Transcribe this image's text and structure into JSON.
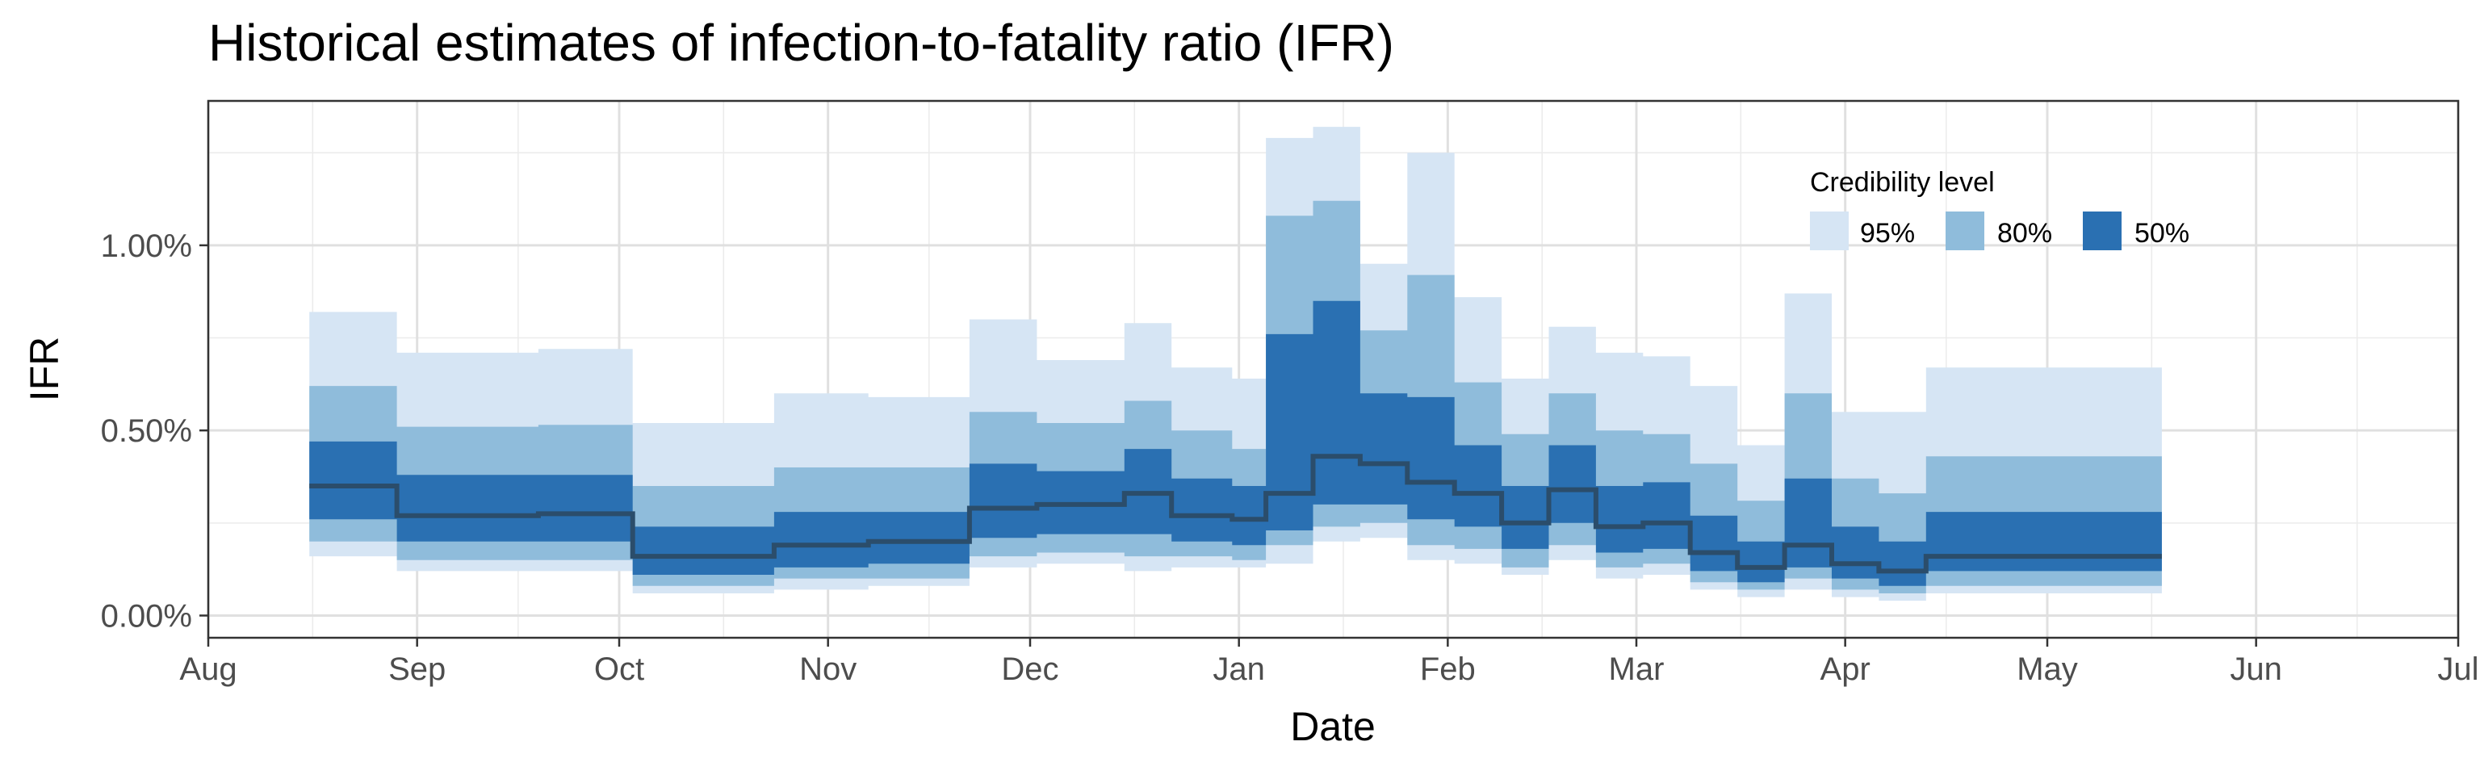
{
  "chart_data": {
    "type": "area",
    "title": "Historical estimates of infection-to-fatality ratio (IFR)",
    "xlabel": "Date",
    "ylabel": "IFR",
    "x_ticks": [
      "Aug",
      "Sep",
      "Oct",
      "Nov",
      "Dec",
      "Jan",
      "Feb",
      "Mar",
      "Apr",
      "May",
      "Jun",
      "Jul"
    ],
    "x_tick_dates": [
      "2020-08-01",
      "2020-09-01",
      "2020-10-01",
      "2020-11-01",
      "2020-12-01",
      "2021-01-01",
      "2021-02-01",
      "2021-03-01",
      "2021-04-01",
      "2021-05-01",
      "2021-06-01",
      "2021-07-01"
    ],
    "xlim": [
      "2020-08-01",
      "2021-07-01"
    ],
    "y_ticks": [
      "0.00%",
      "0.50%",
      "1.00%"
    ],
    "y_tick_values": [
      0.0,
      0.5,
      1.0
    ],
    "ylim": [
      -0.06,
      1.39
    ],
    "grid": true,
    "legend": {
      "title": "Credibility level",
      "position": "top-right (inside)",
      "entries": [
        {
          "label": "95%",
          "color": "#d6e5f4"
        },
        {
          "label": "80%",
          "color": "#8fbcdb"
        },
        {
          "label": "50%",
          "color": "#2a70b2"
        }
      ]
    },
    "median_color": "#2b4d6b",
    "series": [
      {
        "date": "2020-08-16",
        "median": 0.35,
        "lo50": 0.26,
        "hi50": 0.47,
        "lo80": 0.2,
        "hi80": 0.62,
        "lo95": 0.16,
        "hi95": 0.82
      },
      {
        "date": "2020-08-29",
        "median": 0.27,
        "lo50": 0.2,
        "hi50": 0.38,
        "lo80": 0.15,
        "hi80": 0.51,
        "lo95": 0.12,
        "hi95": 0.71
      },
      {
        "date": "2020-09-19",
        "median": 0.275,
        "lo50": 0.2,
        "hi50": 0.38,
        "lo80": 0.15,
        "hi80": 0.515,
        "lo95": 0.12,
        "hi95": 0.72
      },
      {
        "date": "2020-10-03",
        "median": 0.16,
        "lo50": 0.11,
        "hi50": 0.24,
        "lo80": 0.08,
        "hi80": 0.35,
        "lo95": 0.06,
        "hi95": 0.52
      },
      {
        "date": "2020-10-24",
        "median": 0.19,
        "lo50": 0.13,
        "hi50": 0.28,
        "lo80": 0.1,
        "hi80": 0.4,
        "lo95": 0.07,
        "hi95": 0.6
      },
      {
        "date": "2020-11-07",
        "median": 0.2,
        "lo50": 0.14,
        "hi50": 0.28,
        "lo80": 0.1,
        "hi80": 0.4,
        "lo95": 0.08,
        "hi95": 0.59
      },
      {
        "date": "2020-11-22",
        "median": 0.29,
        "lo50": 0.21,
        "hi50": 0.41,
        "lo80": 0.16,
        "hi80": 0.55,
        "lo95": 0.13,
        "hi95": 0.8
      },
      {
        "date": "2020-12-02",
        "median": 0.3,
        "lo50": 0.22,
        "hi50": 0.39,
        "lo80": 0.17,
        "hi80": 0.52,
        "lo95": 0.14,
        "hi95": 0.69
      },
      {
        "date": "2020-12-15",
        "median": 0.33,
        "lo50": 0.22,
        "hi50": 0.45,
        "lo80": 0.16,
        "hi80": 0.58,
        "lo95": 0.12,
        "hi95": 0.79
      },
      {
        "date": "2020-12-22",
        "median": 0.27,
        "lo50": 0.2,
        "hi50": 0.37,
        "lo80": 0.16,
        "hi80": 0.5,
        "lo95": 0.13,
        "hi95": 0.67
      },
      {
        "date": "2020-12-31",
        "median": 0.26,
        "lo50": 0.19,
        "hi50": 0.35,
        "lo80": 0.15,
        "hi80": 0.45,
        "lo95": 0.13,
        "hi95": 0.64
      },
      {
        "date": "2021-01-05",
        "median": 0.33,
        "lo50": 0.23,
        "hi50": 0.76,
        "lo80": 0.19,
        "hi80": 1.08,
        "lo95": 0.14,
        "hi95": 1.29
      },
      {
        "date": "2021-01-12",
        "median": 0.43,
        "lo50": 0.3,
        "hi50": 0.85,
        "lo80": 0.24,
        "hi80": 1.12,
        "lo95": 0.2,
        "hi95": 1.32
      },
      {
        "date": "2021-01-19",
        "median": 0.41,
        "lo50": 0.3,
        "hi50": 0.6,
        "lo80": 0.25,
        "hi80": 0.77,
        "lo95": 0.21,
        "hi95": 0.95
      },
      {
        "date": "2021-01-26",
        "median": 0.36,
        "lo50": 0.26,
        "hi50": 0.59,
        "lo80": 0.19,
        "hi80": 0.92,
        "lo95": 0.15,
        "hi95": 1.25
      },
      {
        "date": "2021-02-02",
        "median": 0.33,
        "lo50": 0.24,
        "hi50": 0.46,
        "lo80": 0.18,
        "hi80": 0.63,
        "lo95": 0.14,
        "hi95": 0.86
      },
      {
        "date": "2021-02-09",
        "median": 0.25,
        "lo50": 0.18,
        "hi50": 0.35,
        "lo80": 0.13,
        "hi80": 0.49,
        "lo95": 0.11,
        "hi95": 0.64
      },
      {
        "date": "2021-02-16",
        "median": 0.34,
        "lo50": 0.25,
        "hi50": 0.46,
        "lo80": 0.19,
        "hi80": 0.6,
        "lo95": 0.15,
        "hi95": 0.78
      },
      {
        "date": "2021-02-23",
        "median": 0.24,
        "lo50": 0.17,
        "hi50": 0.35,
        "lo80": 0.13,
        "hi80": 0.5,
        "lo95": 0.1,
        "hi95": 0.71
      },
      {
        "date": "2021-03-02",
        "median": 0.25,
        "lo50": 0.18,
        "hi50": 0.36,
        "lo80": 0.14,
        "hi80": 0.49,
        "lo95": 0.11,
        "hi95": 0.7
      },
      {
        "date": "2021-03-09",
        "median": 0.17,
        "lo50": 0.12,
        "hi50": 0.27,
        "lo80": 0.09,
        "hi80": 0.41,
        "lo95": 0.07,
        "hi95": 0.62
      },
      {
        "date": "2021-03-16",
        "median": 0.13,
        "lo50": 0.09,
        "hi50": 0.2,
        "lo80": 0.07,
        "hi80": 0.31,
        "lo95": 0.05,
        "hi95": 0.46
      },
      {
        "date": "2021-03-23",
        "median": 0.19,
        "lo50": 0.13,
        "hi50": 0.37,
        "lo80": 0.1,
        "hi80": 0.6,
        "lo95": 0.07,
        "hi95": 0.87
      },
      {
        "date": "2021-03-30",
        "median": 0.14,
        "lo50": 0.1,
        "hi50": 0.24,
        "lo80": 0.07,
        "hi80": 0.37,
        "lo95": 0.05,
        "hi95": 0.55
      },
      {
        "date": "2021-04-06",
        "median": 0.12,
        "lo50": 0.08,
        "hi50": 0.2,
        "lo80": 0.06,
        "hi80": 0.33,
        "lo95": 0.04,
        "hi95": 0.55
      },
      {
        "date": "2021-04-13",
        "median": 0.16,
        "lo50": 0.12,
        "hi50": 0.28,
        "lo80": 0.08,
        "hi80": 0.43,
        "lo95": 0.06,
        "hi95": 0.67
      },
      {
        "date": "2021-05-18",
        "median": 0.16,
        "lo50": 0.12,
        "hi50": 0.28,
        "lo80": 0.08,
        "hi80": 0.43,
        "lo95": 0.06,
        "hi95": 0.67
      }
    ]
  }
}
